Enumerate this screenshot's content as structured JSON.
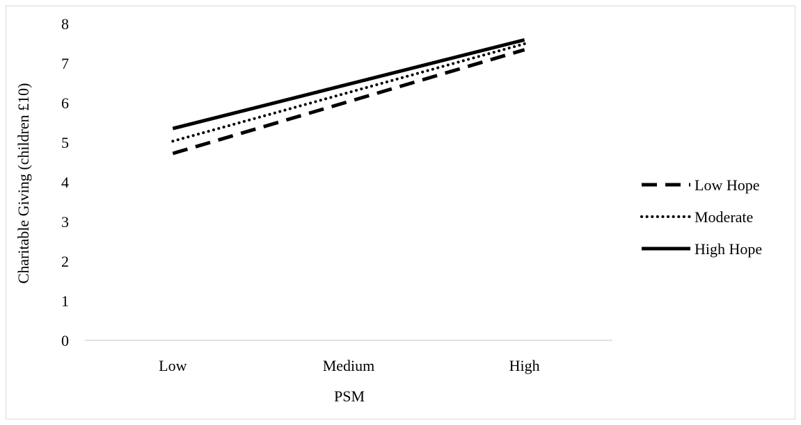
{
  "chart_data": {
    "type": "line",
    "categories": [
      "Low",
      "Medium",
      "High"
    ],
    "series": [
      {
        "name": "Low Hope",
        "values": [
          4.72,
          6.03,
          7.34
        ],
        "dash": "dashed"
      },
      {
        "name": "Moderate",
        "values": [
          5.03,
          6.26,
          7.49
        ],
        "dash": "dotted"
      },
      {
        "name": "High Hope",
        "values": [
          5.35,
          6.47,
          7.59
        ],
        "dash": "solid"
      }
    ],
    "xlabel": "PSM",
    "ylabel": "Charitable Giving (children £10)",
    "ylim": [
      0,
      8
    ],
    "yticks": [
      "0",
      "1",
      "2",
      "3",
      "4",
      "5",
      "6",
      "7",
      "8"
    ],
    "grid": false,
    "legend": "right",
    "colors": {
      "line": "#000000",
      "axis": "#d9d9d9",
      "border": "#d9d9d9"
    }
  }
}
